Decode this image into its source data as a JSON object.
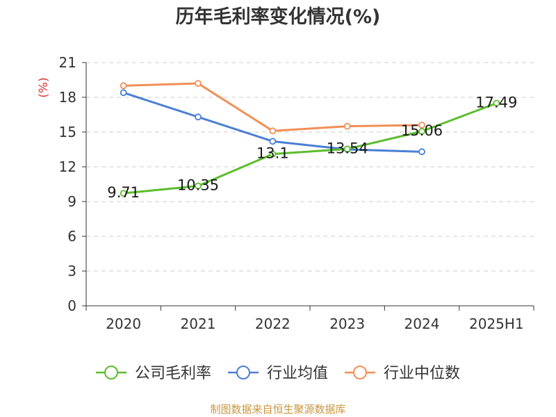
{
  "chart_data": {
    "type": "line",
    "title": "历年毛利率变化情况(%)",
    "ylabel": "(%)",
    "xlabel": "",
    "categories": [
      "2020",
      "2021",
      "2022",
      "2023",
      "2024",
      "2025H1"
    ],
    "ylim": [
      0,
      21
    ],
    "yticks": [
      0,
      3,
      6,
      9,
      12,
      15,
      18,
      21
    ],
    "grid": true,
    "legend_position": "bottom",
    "series": [
      {
        "name": "公司毛利率",
        "color": "#5bbd2b",
        "values": [
          9.71,
          10.35,
          13.1,
          13.54,
          15.06,
          17.49
        ],
        "labels": [
          "9.71",
          "10.35",
          "13.1",
          "13.54",
          "15.06",
          "17.49"
        ]
      },
      {
        "name": "行业均值",
        "color": "#4a7fd6",
        "values": [
          18.4,
          16.3,
          14.2,
          13.5,
          13.3,
          null
        ]
      },
      {
        "name": "行业中位数",
        "color": "#f28e55",
        "values": [
          19.0,
          19.2,
          15.1,
          15.5,
          15.6,
          null
        ]
      }
    ],
    "source": "制图数据来自恒生聚源数据库"
  }
}
